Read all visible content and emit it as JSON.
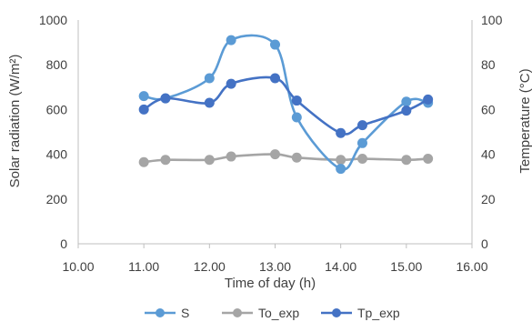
{
  "chart_data": {
    "type": "line",
    "title": "",
    "xlabel": "Time of day (h)",
    "ylabel": "Solar radiation (W/m²)",
    "y2label": "Temperature (°C)",
    "xlim": [
      10.0,
      16.0
    ],
    "ylim": [
      0,
      1000
    ],
    "y2lim": [
      0,
      100
    ],
    "xticks": [
      "10.00",
      "11.00",
      "12.00",
      "13.00",
      "14.00",
      "15.00",
      "16.00"
    ],
    "yticks": [
      "0",
      "200",
      "400",
      "600",
      "800",
      "1000"
    ],
    "y2ticks": [
      "0",
      "20",
      "40",
      "60",
      "80",
      "100"
    ],
    "grid": false,
    "legend_position": "bottom",
    "series": [
      {
        "name": "S",
        "axis": "left",
        "color": "#5b9bd5",
        "x": [
          11.0,
          11.33,
          12.0,
          12.33,
          13.0,
          13.33,
          14.0,
          14.33,
          15.0,
          15.33
        ],
        "y": [
          660,
          650,
          740,
          910,
          890,
          565,
          335,
          450,
          635,
          630
        ]
      },
      {
        "name": "To_exp",
        "axis": "right",
        "color": "#a5a5a5",
        "x": [
          11.0,
          11.33,
          12.0,
          12.33,
          13.0,
          13.33,
          14.0,
          14.33,
          15.0,
          15.33
        ],
        "y": [
          36.5,
          37.5,
          37.5,
          39,
          40,
          38.5,
          37.5,
          38,
          37.5,
          38
        ]
      },
      {
        "name": "Tp_exp",
        "axis": "right",
        "color": "#4472c4",
        "x": [
          11.0,
          11.33,
          12.0,
          12.33,
          13.0,
          13.33,
          14.0,
          14.33,
          15.0,
          15.33
        ],
        "y": [
          60,
          65,
          63,
          71.5,
          74,
          64,
          49.5,
          53,
          59.5,
          64.5
        ]
      }
    ]
  }
}
